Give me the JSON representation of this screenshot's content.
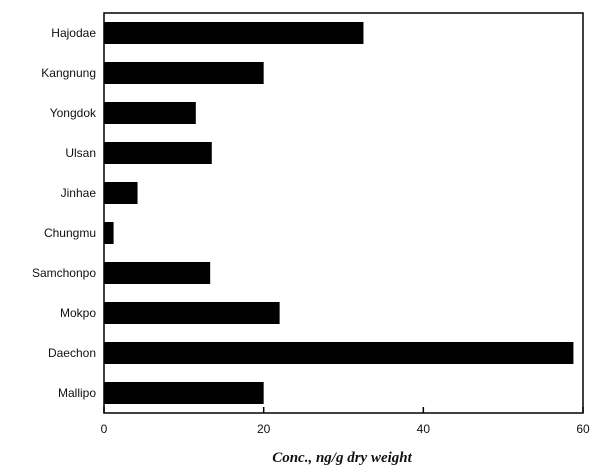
{
  "chart_data": {
    "type": "bar",
    "orientation": "horizontal",
    "title": "",
    "xlabel": "Conc., ng/g dry weight",
    "ylabel": "",
    "categories": [
      "Hajodae",
      "Kangnung",
      "Yongdok",
      "Ulsan",
      "Jinhae",
      "Chungmu",
      "Samchonpo",
      "Mokpo",
      "Daechon",
      "Mallipo"
    ],
    "values": [
      32.5,
      20.0,
      11.5,
      13.5,
      4.2,
      1.2,
      13.3,
      22.0,
      58.8,
      20.0
    ],
    "xlim": [
      0,
      60
    ],
    "x_ticks": [
      0,
      20,
      40,
      60
    ],
    "grid": false,
    "legend": "none",
    "bar_color": "#000000"
  }
}
